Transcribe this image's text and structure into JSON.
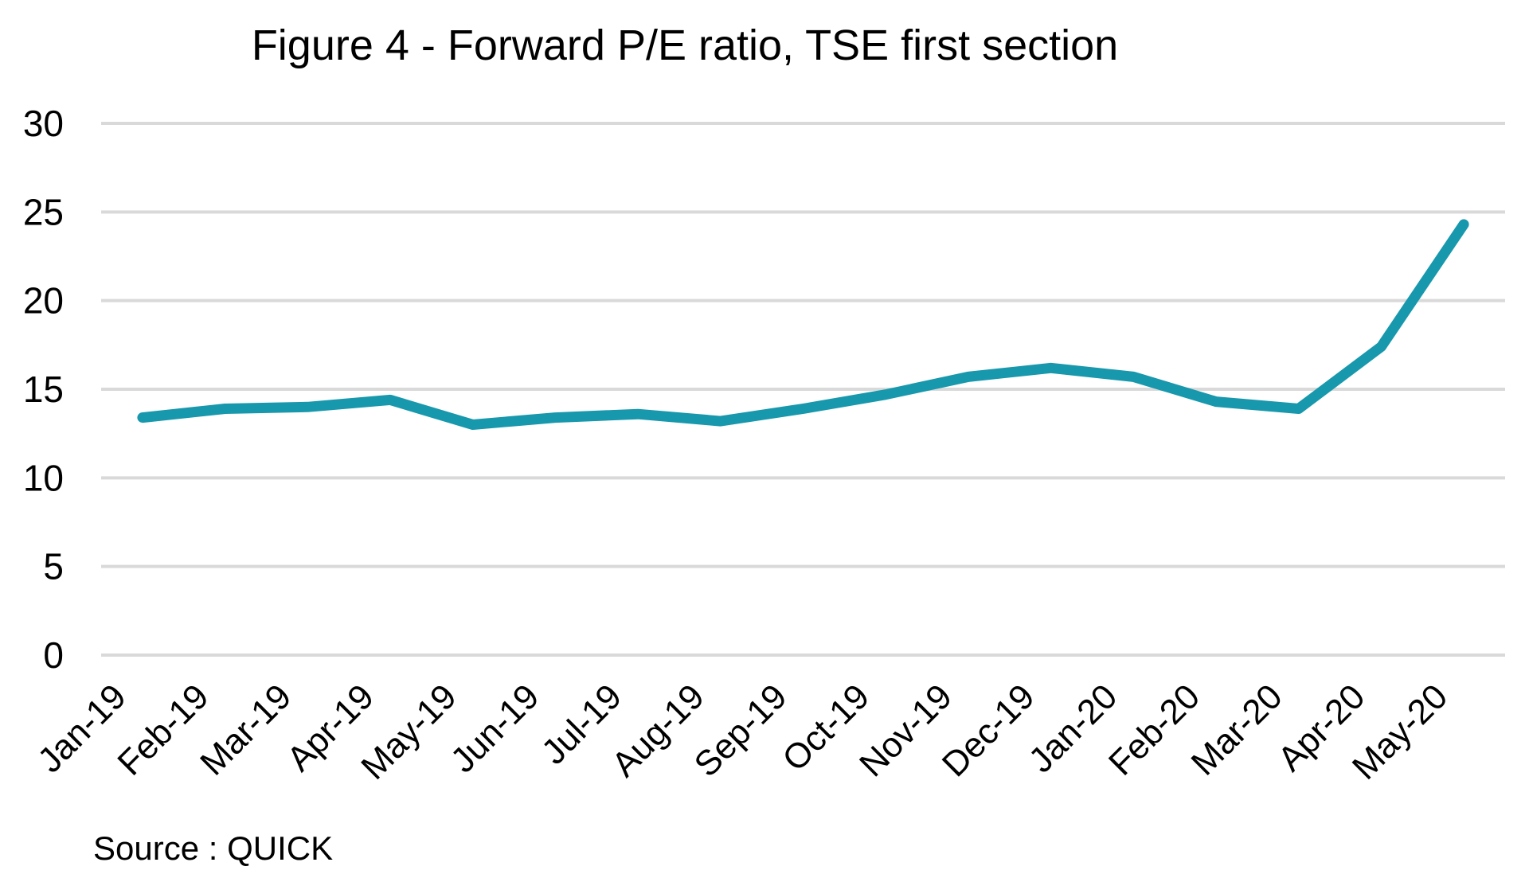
{
  "chart_data": {
    "type": "line",
    "title": "Figure 4 - Forward P/E ratio, TSE first section",
    "categories": [
      "Jan-19",
      "Feb-19",
      "Mar-19",
      "Apr-19",
      "May-19",
      "Jun-19",
      "Jul-19",
      "Aug-19",
      "Sep-19",
      "Oct-19",
      "Nov-19",
      "Dec-19",
      "Jan-20",
      "Feb-20",
      "Mar-20",
      "Apr-20",
      "May-20"
    ],
    "series": [
      {
        "name": "Forward P/E ratio",
        "values": [
          13.4,
          13.9,
          14.0,
          14.4,
          13.0,
          13.4,
          13.6,
          13.2,
          13.9,
          14.7,
          15.7,
          16.2,
          15.7,
          14.3,
          13.9,
          17.4,
          24.3
        ],
        "color": "#1898ac"
      }
    ],
    "xlabel": "",
    "ylabel": "",
    "ylim": [
      0,
      30
    ],
    "yticks": [
      0,
      5,
      10,
      15,
      20,
      25,
      30
    ],
    "grid": "horizontal",
    "legend": "none",
    "gridline_color": "#d9d9d9",
    "text_color": "#000000",
    "background_color": "#ffffff"
  },
  "source": "Source : QUICK"
}
